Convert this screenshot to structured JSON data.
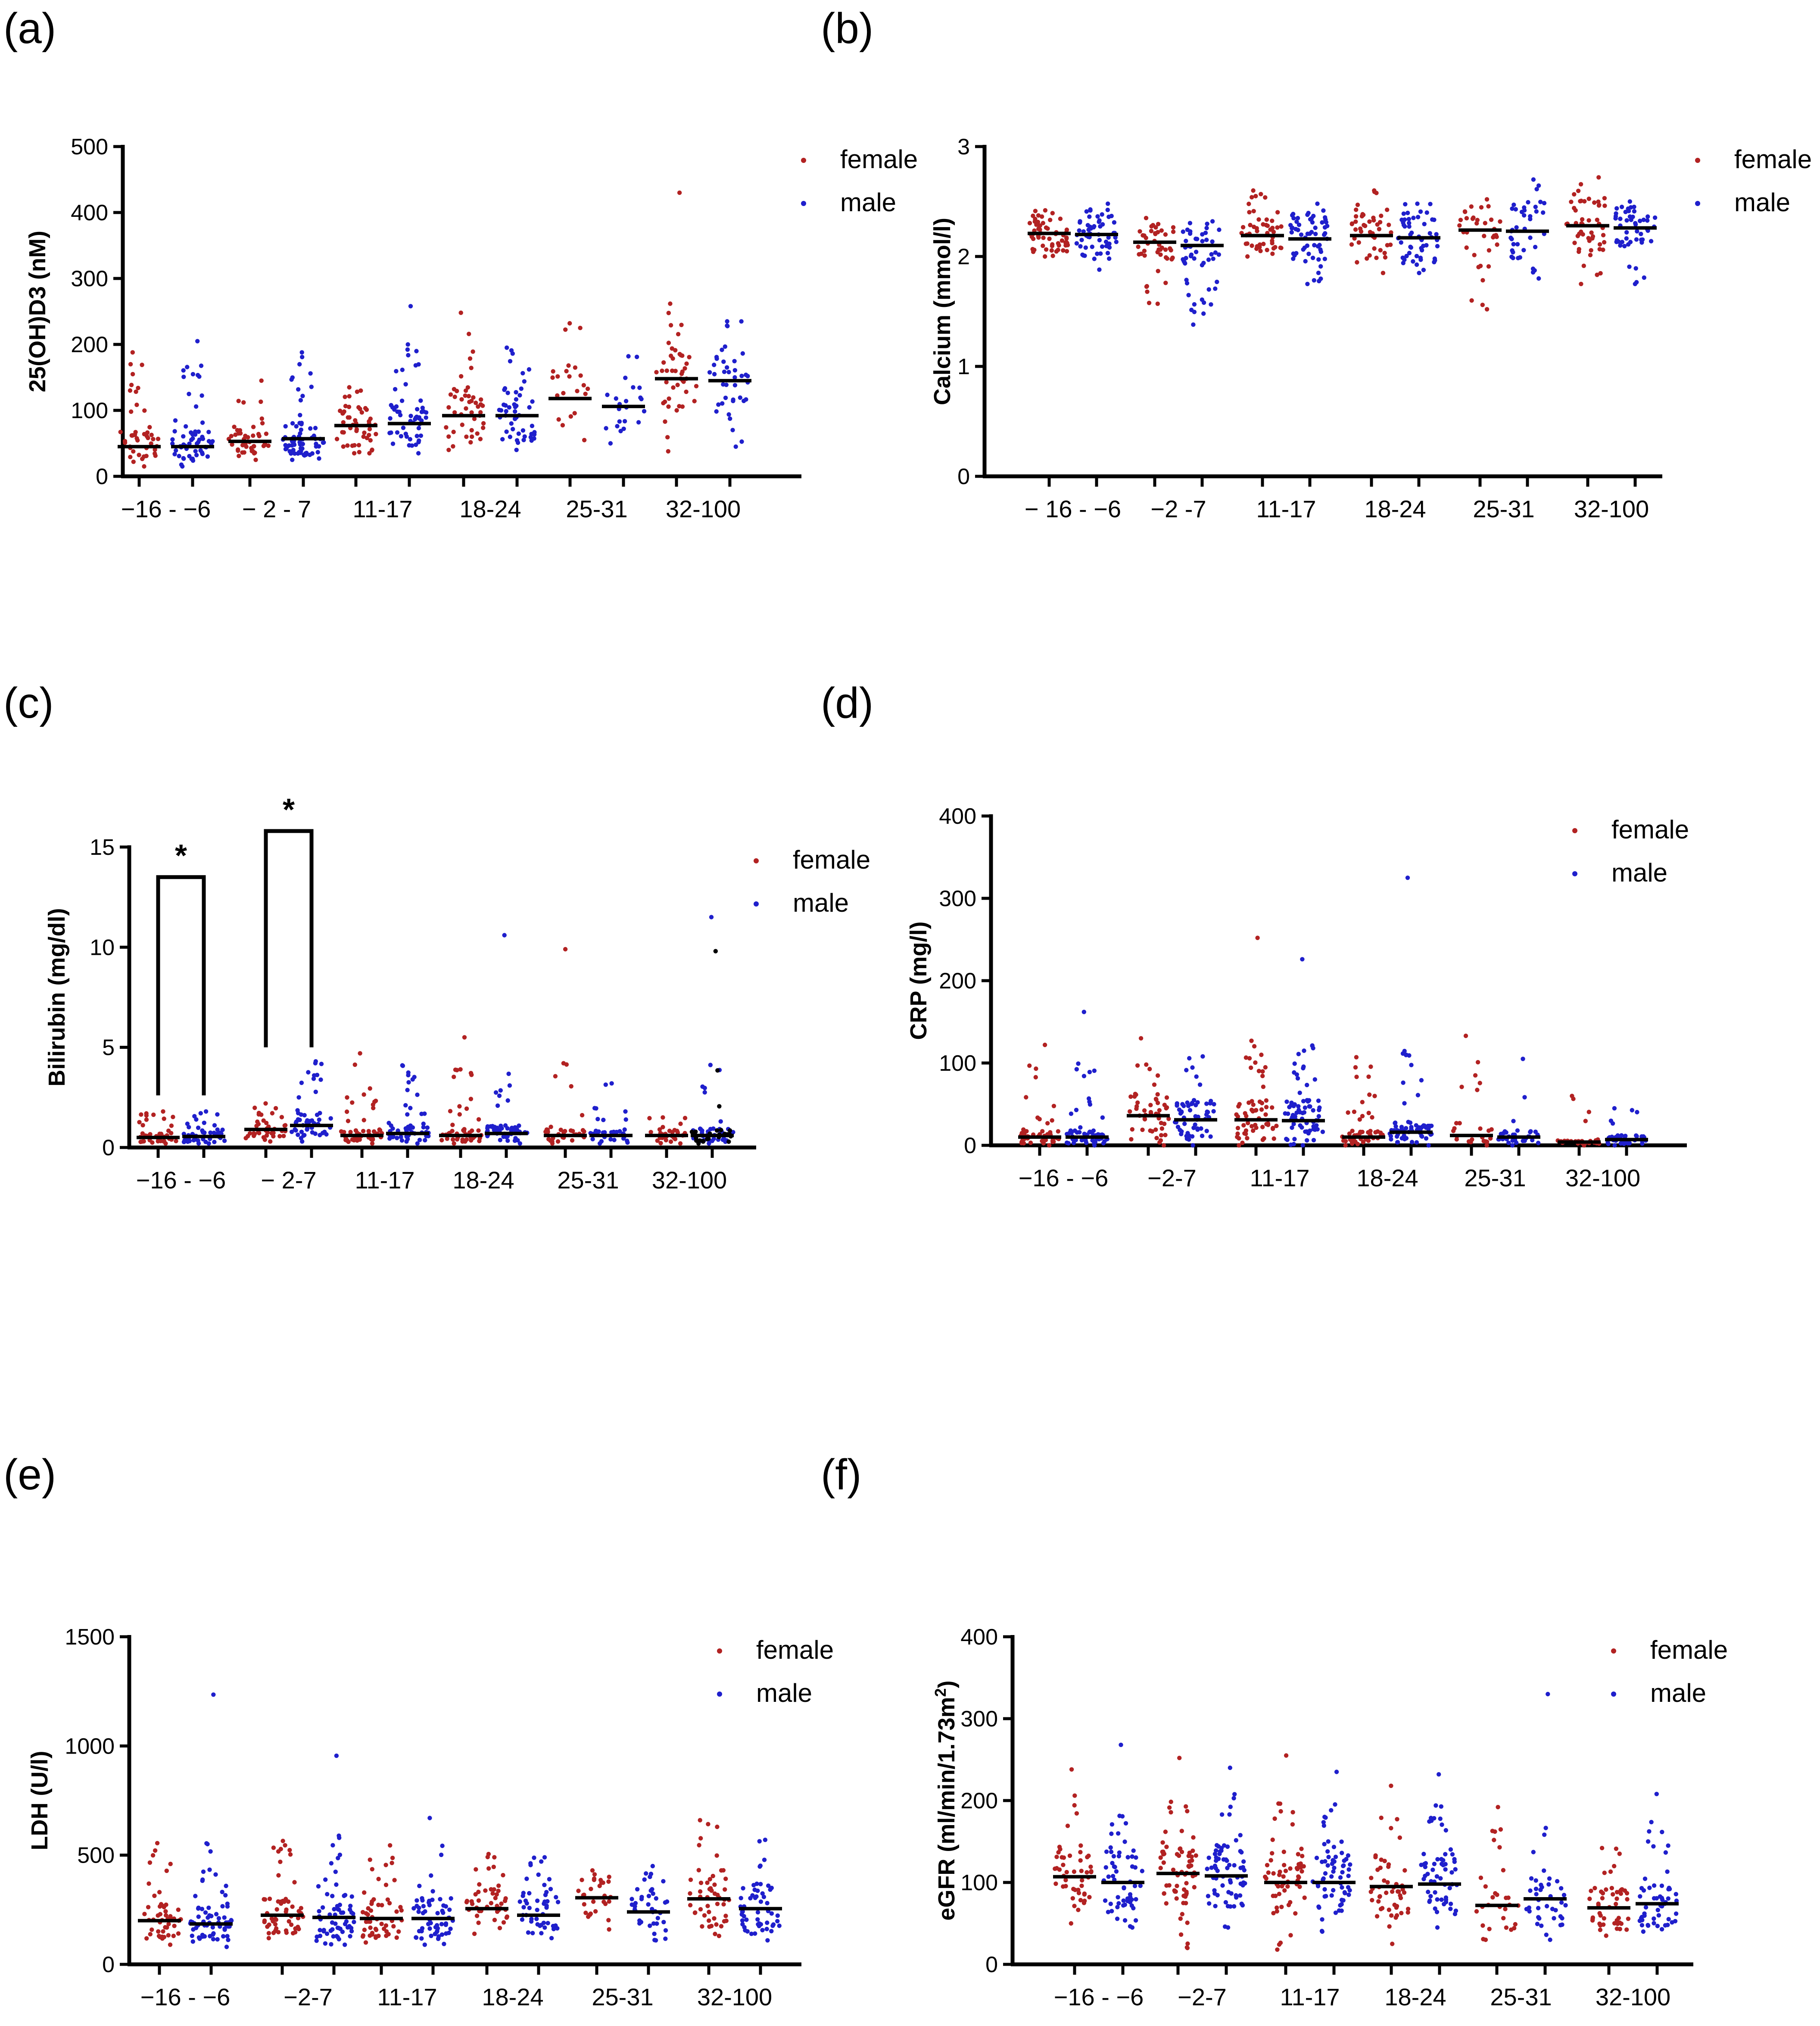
{
  "colors": {
    "female": "#b22222",
    "male": "#1f1fcc",
    "black": "#000000"
  },
  "chart_data": [
    {
      "panel": "(a)",
      "type": "scatter",
      "subtype": "dot-plot with median line",
      "ylabel": "25(OH)D3 (nM)",
      "ylim": [
        0,
        500
      ],
      "yticks": [
        0,
        100,
        200,
        300,
        400,
        500
      ],
      "categories": [
        "−16 - −6",
        "− 2 - 7",
        "11-17",
        "18-24",
        "25-31",
        "32-100"
      ],
      "legend": [
        "female",
        "male"
      ],
      "legend_position": "top-right",
      "series": [
        {
          "name": "female",
          "medians": [
            45,
            53,
            77,
            92,
            118,
            148
          ],
          "spread": [
            [
              15,
              188
            ],
            [
              25,
              145
            ],
            [
              35,
              135
            ],
            [
              40,
              248
            ],
            [
              55,
              232
            ],
            [
              38,
              430
            ]
          ],
          "n": [
            45,
            45,
            50,
            45,
            22,
            45
          ]
        },
        {
          "name": "male",
          "medians": [
            45,
            57,
            80,
            92,
            106,
            145
          ],
          "spread": [
            [
              15,
              205
            ],
            [
              25,
              188
            ],
            [
              35,
              258
            ],
            [
              40,
              195
            ],
            [
              50,
              182
            ],
            [
              45,
              235
            ]
          ],
          "n": [
            60,
            70,
            55,
            50,
            22,
            40
          ]
        }
      ],
      "annotations": []
    },
    {
      "panel": "(b)",
      "type": "scatter",
      "subtype": "dot-plot with median line",
      "ylabel": "Calcium  (mmol/l)",
      "ylim": [
        0,
        3
      ],
      "yticks": [
        0,
        1,
        2,
        3
      ],
      "categories": [
        "− 16 - −6",
        "−2 -7",
        "11-17",
        "18-24",
        "25-31",
        "32-100"
      ],
      "legend": [
        "female",
        "male"
      ],
      "legend_position": "top-right",
      "series": [
        {
          "name": "female",
          "medians": [
            2.21,
            2.13,
            2.19,
            2.19,
            2.24,
            2.28
          ],
          "spread": [
            [
              2.0,
              2.42
            ],
            [
              1.57,
              2.35
            ],
            [
              2.0,
              2.6
            ],
            [
              1.85,
              2.6
            ],
            [
              1.52,
              2.52
            ],
            [
              1.75,
              2.72
            ]
          ],
          "n": [
            60,
            45,
            50,
            45,
            35,
            50
          ]
        },
        {
          "name": "male",
          "medians": [
            2.2,
            2.1,
            2.16,
            2.17,
            2.23,
            2.26
          ],
          "spread": [
            [
              1.88,
              2.48
            ],
            [
              1.38,
              2.32
            ],
            [
              1.75,
              2.48
            ],
            [
              1.85,
              2.48
            ],
            [
              1.8,
              2.7
            ],
            [
              1.75,
              2.5
            ]
          ],
          "n": [
            60,
            50,
            60,
            55,
            40,
            50
          ]
        }
      ],
      "annotations": []
    },
    {
      "panel": "(c)",
      "type": "scatter",
      "subtype": "dot-plot with median line",
      "ylabel": "Bilirubin (mg/dl)",
      "ylim": [
        0,
        15
      ],
      "yticks": [
        0,
        5,
        10,
        15
      ],
      "categories": [
        "−16 - −6",
        "− 2-7",
        "11-17",
        "18-24",
        "25-31",
        "32-100"
      ],
      "legend": [
        "female",
        "male"
      ],
      "legend_position": "top-right",
      "series": [
        {
          "name": "female",
          "medians": [
            0.5,
            0.9,
            0.6,
            0.6,
            0.6,
            0.6
          ],
          "spread": [
            [
              0.2,
              1.8
            ],
            [
              0.3,
              2.2
            ],
            [
              0.2,
              4.7
            ],
            [
              0.2,
              5.5
            ],
            [
              0.2,
              9.9
            ],
            [
              0.2,
              1.5
            ]
          ],
          "n": [
            40,
            40,
            50,
            45,
            35,
            30
          ]
        },
        {
          "name": "male",
          "medians": [
            0.55,
            1.1,
            0.7,
            0.7,
            0.6,
            0.6
          ],
          "spread": [
            [
              0.2,
              1.8
            ],
            [
              0.3,
              4.3
            ],
            [
              0.2,
              4.1
            ],
            [
              0.2,
              10.6
            ],
            [
              0.2,
              3.2
            ],
            [
              0.2,
              11.5
            ]
          ],
          "n": [
            50,
            50,
            55,
            55,
            35,
            40
          ]
        },
        {
          "name": "other",
          "color": "black",
          "medians": [
            null,
            null,
            null,
            null,
            null,
            0.6
          ],
          "spread": [
            null,
            null,
            null,
            null,
            null,
            [
              0.2,
              9.8
            ]
          ],
          "n": [
            0,
            0,
            0,
            0,
            0,
            25
          ]
        }
      ],
      "annotations": [
        {
          "type": "significance-bracket",
          "label": "*",
          "between": [
            "female −16 - −6",
            "male −16 - −6"
          ]
        },
        {
          "type": "significance-bracket",
          "label": "*",
          "between": [
            "female − 2-7",
            "male − 2-7"
          ]
        }
      ]
    },
    {
      "panel": "(d)",
      "type": "scatter",
      "subtype": "dot-plot with median line",
      "ylabel": "CRP (mg/l)",
      "ylim": [
        0,
        400
      ],
      "yticks": [
        0,
        100,
        200,
        300,
        400
      ],
      "categories": [
        "−16 - −6",
        "−2-7",
        "11-17",
        "18-24",
        "25-31",
        "32-100"
      ],
      "legend": [
        "female",
        "male"
      ],
      "legend_position": "top-right",
      "series": [
        {
          "name": "female",
          "medians": [
            10,
            36,
            31,
            10,
            12,
            4
          ],
          "spread": [
            [
              0,
              122
            ],
            [
              0,
              130
            ],
            [
              0,
              252
            ],
            [
              0,
              107
            ],
            [
              0,
              133
            ],
            [
              0,
              60
            ]
          ],
          "n": [
            45,
            50,
            60,
            50,
            25,
            30
          ]
        },
        {
          "name": "male",
          "medians": [
            10,
            31,
            30,
            16,
            10,
            7
          ],
          "spread": [
            [
              0,
              162
            ],
            [
              0,
              108
            ],
            [
              0,
              226
            ],
            [
              0,
              325
            ],
            [
              0,
              105
            ],
            [
              0,
              45
            ]
          ],
          "n": [
            55,
            60,
            75,
            65,
            35,
            40
          ]
        }
      ],
      "annotations": []
    },
    {
      "panel": "(e)",
      "type": "scatter",
      "subtype": "dot-plot with median line",
      "ylabel": "LDH (U/l)",
      "ylim": [
        0,
        1500
      ],
      "yticks": [
        0,
        500,
        1000,
        1500
      ],
      "categories": [
        "−16 - −6",
        "−2-7",
        "11-17",
        "18-24",
        "25-31",
        "32-100"
      ],
      "legend": [
        "female",
        "male"
      ],
      "legend_position": "top-right",
      "series": [
        {
          "name": "female",
          "medians": [
            200,
            225,
            210,
            255,
            305,
            300
          ],
          "spread": [
            [
              90,
              555
            ],
            [
              120,
              565
            ],
            [
              100,
              545
            ],
            [
              140,
              505
            ],
            [
              160,
              430
            ],
            [
              130,
              660
            ]
          ],
          "n": [
            50,
            55,
            55,
            45,
            30,
            50
          ]
        },
        {
          "name": "male",
          "medians": [
            185,
            215,
            210,
            225,
            240,
            255
          ],
          "spread": [
            [
              80,
              1235
            ],
            [
              90,
              955
            ],
            [
              90,
              670
            ],
            [
              120,
              490
            ],
            [
              110,
              450
            ],
            [
              110,
              570
            ]
          ],
          "n": [
            70,
            65,
            60,
            50,
            40,
            55
          ]
        }
      ],
      "annotations": []
    },
    {
      "panel": "(f)",
      "type": "scatter",
      "subtype": "dot-plot with median line",
      "ylabel": "eGFR (ml/min/1.73m²)",
      "ylim": [
        0,
        400
      ],
      "yticks": [
        0,
        100,
        200,
        300,
        400
      ],
      "categories": [
        "−16 - −6",
        "−2-7",
        "11-17",
        "18-24",
        "25-31",
        "32-100"
      ],
      "legend": [
        "female",
        "male"
      ],
      "legend_position": "top-right",
      "series": [
        {
          "name": "female",
          "medians": [
            107,
            111,
            100,
            95,
            72,
            69
          ],
          "spread": [
            [
              50,
              238
            ],
            [
              20,
              252
            ],
            [
              18,
              255
            ],
            [
              25,
              218
            ],
            [
              30,
              192
            ],
            [
              35,
              142
            ]
          ],
          "n": [
            50,
            70,
            60,
            50,
            30,
            50
          ]
        },
        {
          "name": "male",
          "medians": [
            100,
            108,
            100,
            98,
            80,
            74
          ],
          "spread": [
            [
              45,
              268
            ],
            [
              45,
              240
            ],
            [
              40,
              235
            ],
            [
              45,
              232
            ],
            [
              30,
              330
            ],
            [
              40,
              208
            ]
          ],
          "n": [
            60,
            70,
            65,
            60,
            40,
            55
          ]
        }
      ],
      "annotations": []
    }
  ],
  "panel_labels": [
    "(a)",
    "(b)",
    "(c)",
    "(d)",
    "(e)",
    "(f)"
  ]
}
